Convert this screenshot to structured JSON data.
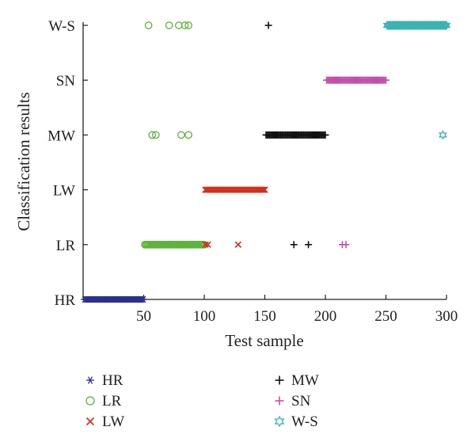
{
  "chart_data": {
    "type": "scatter",
    "xlabel": "Test sample",
    "ylabel": "Classification results",
    "xlim": [
      0,
      300
    ],
    "x_ticks": [
      50,
      100,
      150,
      200,
      250,
      300
    ],
    "x_tick_labels": [
      "50",
      "100",
      "150",
      "200",
      "250",
      "300"
    ],
    "categories": [
      "HR",
      "LR",
      "LW",
      "MW",
      "SN",
      "W-S"
    ],
    "legend_position": "bottom",
    "series": [
      {
        "name": "HR",
        "marker": "asterisk",
        "color": "#2b2f8f",
        "points": [
          {
            "x_range": [
              1,
              50
            ],
            "y": "HR"
          }
        ]
      },
      {
        "name": "LR",
        "marker": "circle",
        "color": "#5cb33a",
        "points": [
          {
            "x_range": [
              51,
              100
            ],
            "y": "LR"
          },
          {
            "x": 54,
            "y": "W-S"
          },
          {
            "x": 71,
            "y": "W-S"
          },
          {
            "x": 79,
            "y": "W-S"
          },
          {
            "x": 84,
            "y": "W-S"
          },
          {
            "x": 87,
            "y": "W-S"
          },
          {
            "x": 57,
            "y": "MW"
          },
          {
            "x": 60,
            "y": "MW"
          },
          {
            "x": 81,
            "y": "MW"
          },
          {
            "x": 87,
            "y": "MW"
          }
        ]
      },
      {
        "name": "LW",
        "marker": "cross",
        "color": "#d2321e",
        "points": [
          {
            "x_range": [
              101,
              150
            ],
            "y": "LW"
          },
          {
            "x": 101,
            "y": "LR"
          },
          {
            "x": 103,
            "y": "LR"
          },
          {
            "x": 128,
            "y": "LR"
          }
        ]
      },
      {
        "name": "MW",
        "marker": "plus",
        "color": "#111111",
        "points": [
          {
            "x_range": [
              151,
              200
            ],
            "y": "MW"
          },
          {
            "x": 153,
            "y": "W-S"
          },
          {
            "x": 174,
            "y": "LR"
          },
          {
            "x": 186,
            "y": "LR"
          }
        ]
      },
      {
        "name": "SN",
        "marker": "plus",
        "color": "#c44ea6",
        "points": [
          {
            "x_range": [
              201,
              250
            ],
            "y": "SN"
          },
          {
            "x": 214,
            "y": "LR"
          },
          {
            "x": 217,
            "y": "LR"
          }
        ]
      },
      {
        "name": "W-S",
        "marker": "hexagram",
        "color": "#3bb3b0",
        "points": [
          {
            "x_range": [
              251,
              300
            ],
            "y": "W-S"
          },
          {
            "x": 297,
            "y": "MW"
          }
        ]
      }
    ]
  }
}
